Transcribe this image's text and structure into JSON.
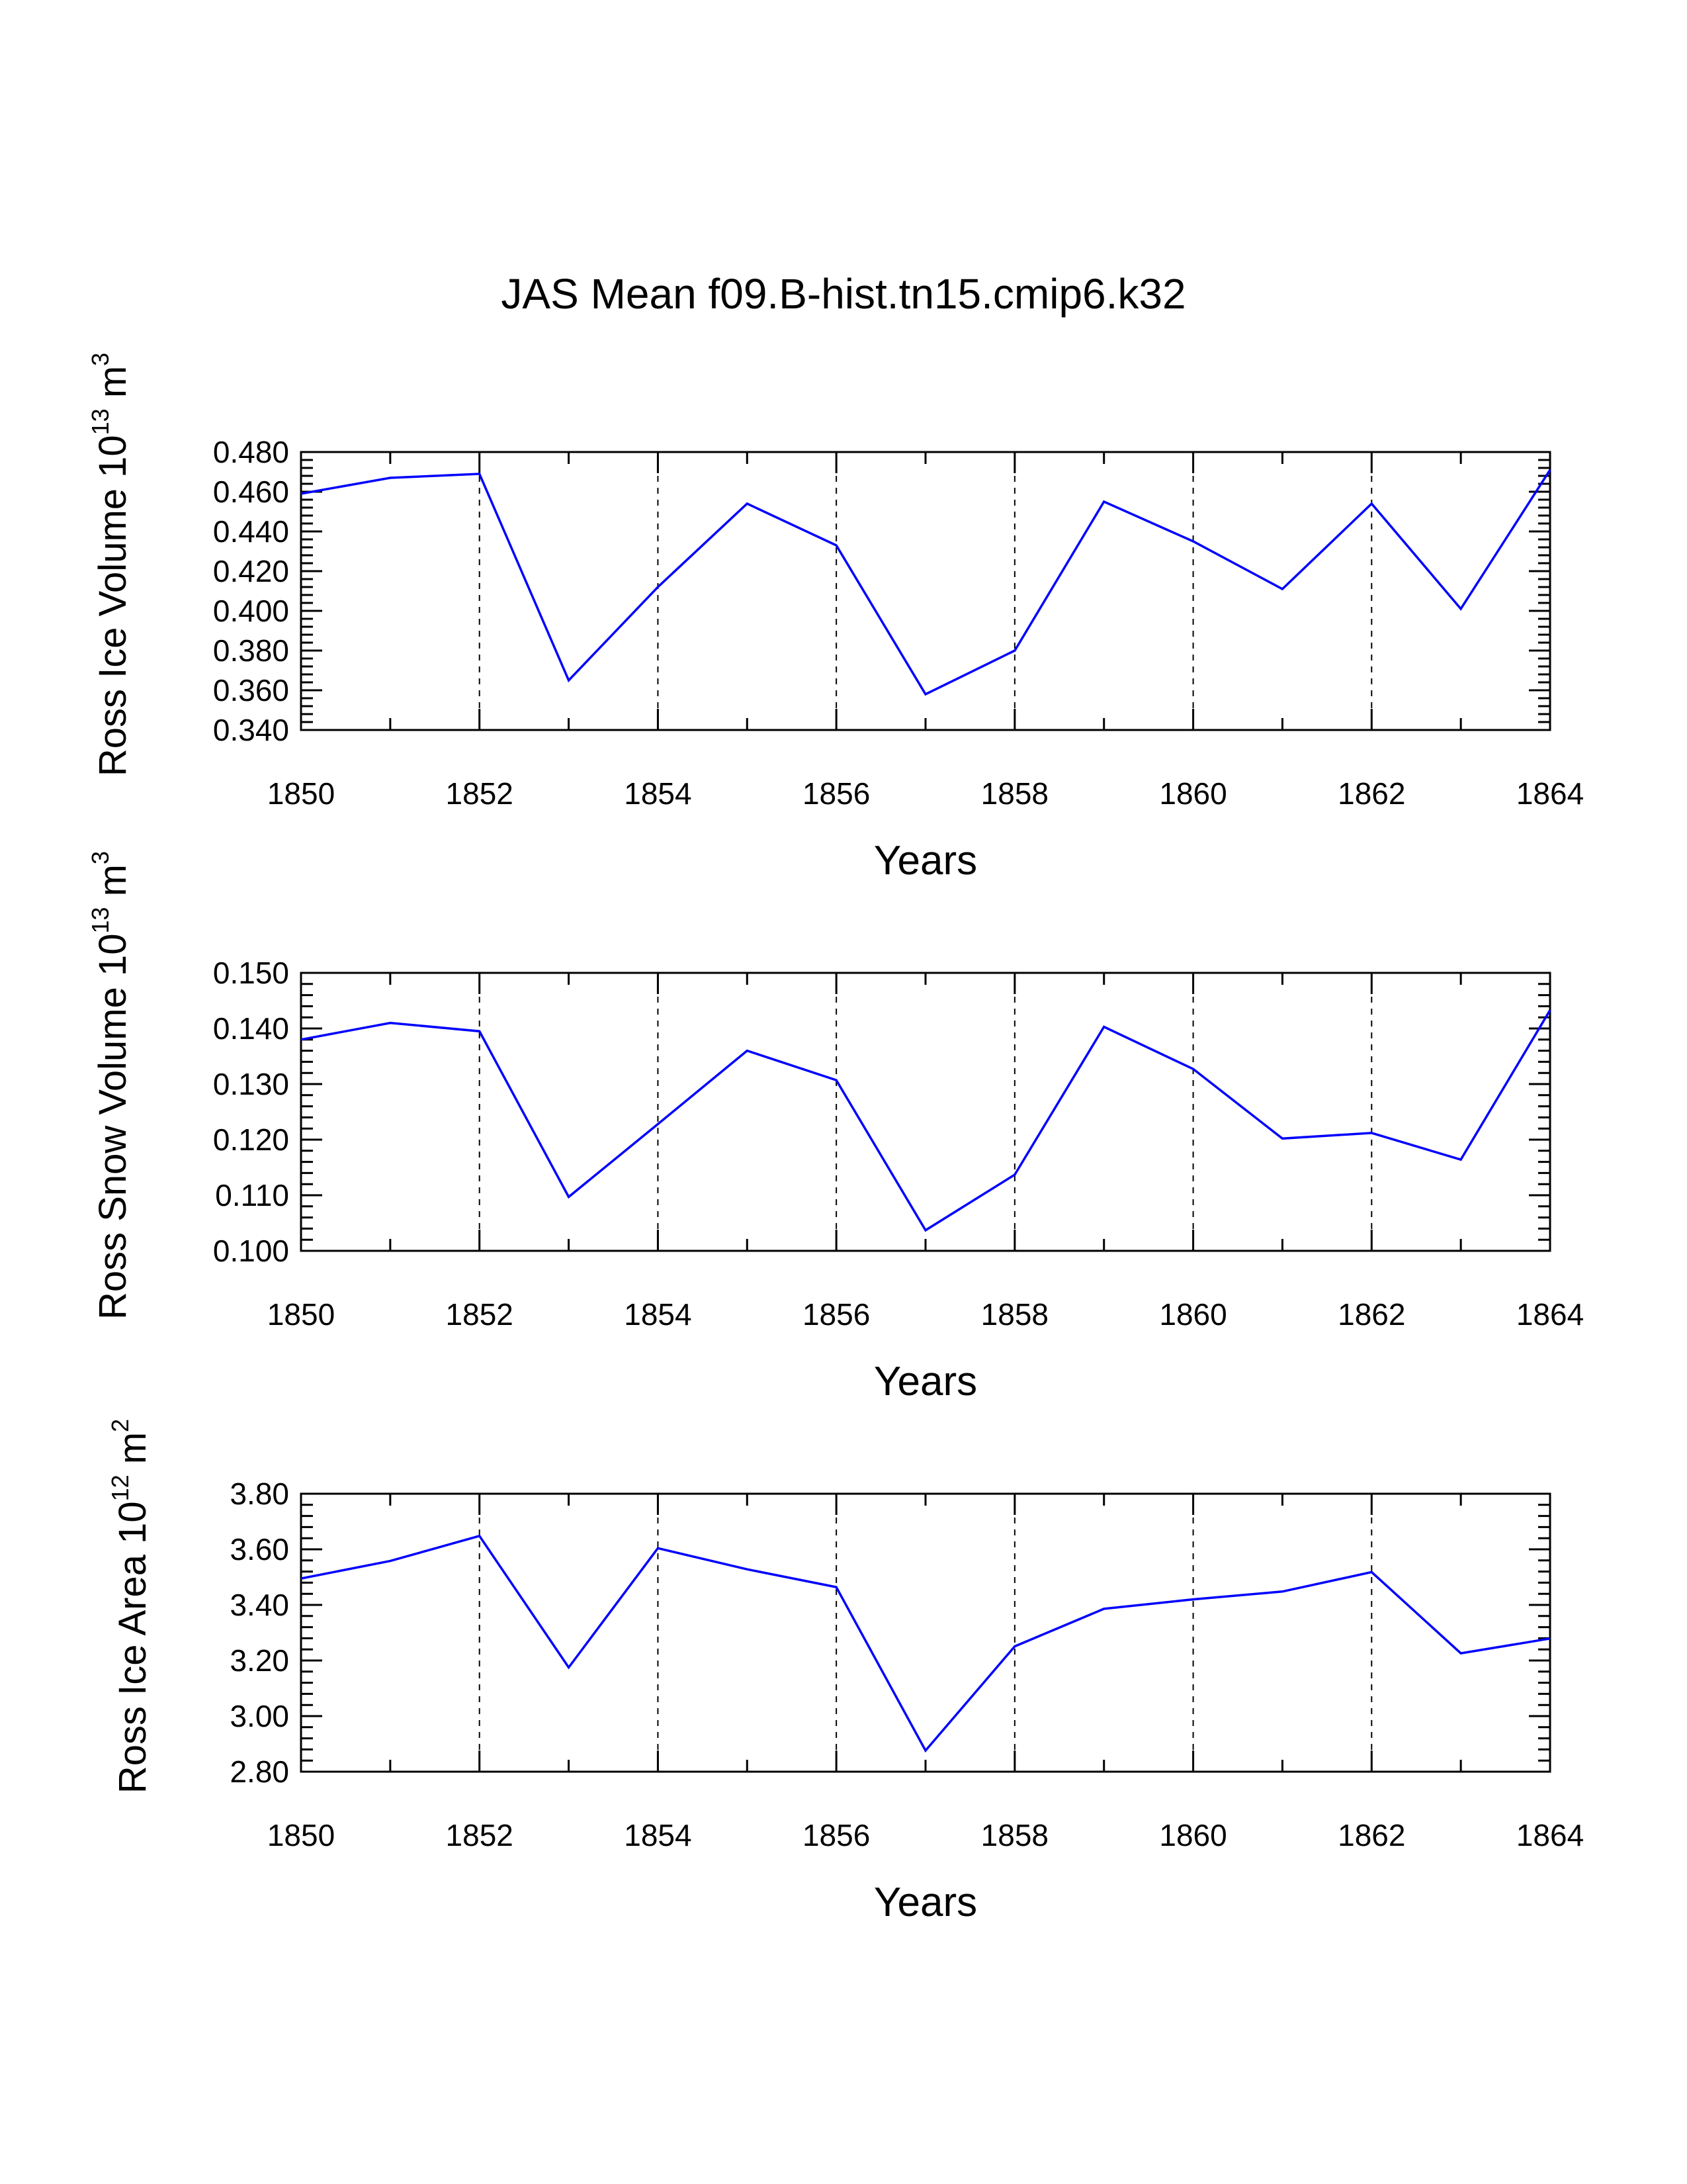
{
  "title": "JAS Mean f09.B-hist.tn15.cmip6.k32",
  "chart_data": [
    {
      "type": "line",
      "id": "ice-volume",
      "title": "",
      "xlabel": "Years",
      "ylabel": {
        "prefix": "Ross Ice Volume 10",
        "exp1": "13",
        "mid": " m",
        "exp2": "3"
      },
      "x": [
        1850,
        1851,
        1852,
        1853,
        1854,
        1855,
        1856,
        1857,
        1858,
        1859,
        1860,
        1861,
        1862,
        1863,
        1864
      ],
      "values": [
        0.459,
        0.467,
        0.469,
        0.365,
        0.412,
        0.454,
        0.433,
        0.358,
        0.38,
        0.455,
        0.435,
        0.411,
        0.454,
        0.401,
        0.471
      ],
      "xlim": [
        1850,
        1864
      ],
      "xticks": [
        "1850",
        "1852",
        "1854",
        "1856",
        "1858",
        "1860",
        "1862",
        "1864"
      ],
      "ylim": [
        0.34,
        0.48
      ],
      "yticks": [
        "0.340",
        "0.360",
        "0.380",
        "0.400",
        "0.420",
        "0.440",
        "0.460",
        "0.480"
      ],
      "line_color": "#0000ff",
      "grid": "vertical dashed at major x ticks"
    },
    {
      "type": "line",
      "id": "snow-volume",
      "title": "",
      "xlabel": "Years",
      "ylabel": {
        "prefix": "Ross Snow Volume 10",
        "exp1": "13",
        "mid": " m",
        "exp2": "3"
      },
      "x": [
        1850,
        1851,
        1852,
        1853,
        1854,
        1855,
        1856,
        1857,
        1858,
        1859,
        1860,
        1861,
        1862,
        1863,
        1864
      ],
      "values": [
        0.138,
        0.141,
        0.1395,
        0.1097,
        0.1228,
        0.136,
        0.1307,
        0.1037,
        0.1137,
        0.1403,
        0.1327,
        0.1202,
        0.1212,
        0.1164,
        0.1433
      ],
      "xlim": [
        1850,
        1864
      ],
      "xticks": [
        "1850",
        "1852",
        "1854",
        "1856",
        "1858",
        "1860",
        "1862",
        "1864"
      ],
      "ylim": [
        0.1,
        0.15
      ],
      "yticks": [
        "0.100",
        "0.110",
        "0.120",
        "0.130",
        "0.140",
        "0.150"
      ],
      "line_color": "#0000ff",
      "grid": "vertical dashed at major x ticks"
    },
    {
      "type": "line",
      "id": "ice-area",
      "title": "",
      "xlabel": "Years",
      "ylabel": {
        "prefix": "Ross Ice Area 10",
        "exp1": "12",
        "mid": " m",
        "exp2": "2"
      },
      "x": [
        1850,
        1851,
        1852,
        1853,
        1854,
        1855,
        1856,
        1857,
        1858,
        1859,
        1860,
        1861,
        1862,
        1863,
        1864
      ],
      "values": [
        3.495,
        3.558,
        3.648,
        3.175,
        3.604,
        3.528,
        3.464,
        2.876,
        3.251,
        3.386,
        3.42,
        3.448,
        3.518,
        3.226,
        3.279
      ],
      "xlim": [
        1850,
        1864
      ],
      "xticks": [
        "1850",
        "1852",
        "1854",
        "1856",
        "1858",
        "1860",
        "1862",
        "1864"
      ],
      "ylim": [
        2.8,
        3.8
      ],
      "yticks": [
        "2.80",
        "3.00",
        "3.20",
        "3.40",
        "3.60",
        "3.80"
      ],
      "line_color": "#0000ff",
      "grid": "vertical dashed at major x ticks"
    }
  ]
}
